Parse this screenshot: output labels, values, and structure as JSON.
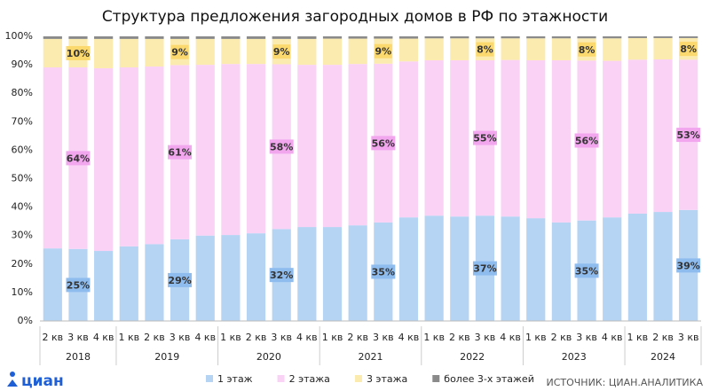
{
  "chart_data": {
    "type": "stacked_bar",
    "title": "Структура предложения загородных домов в РФ по этажности",
    "groups": [
      {
        "label": "2018",
        "categories": [
          "2 кв",
          "3 кв",
          "4 кв"
        ]
      },
      {
        "label": "2019",
        "categories": [
          "1 кв",
          "2 кв",
          "3 кв",
          "4 кв"
        ]
      },
      {
        "label": "2020",
        "categories": [
          "1 кв",
          "2 кв",
          "3 кв",
          "4 кв"
        ]
      },
      {
        "label": "2021",
        "categories": [
          "1 кв",
          "2 кв",
          "3 кв",
          "4 кв"
        ]
      },
      {
        "label": "2022",
        "categories": [
          "1 кв",
          "2 кв",
          "3 кв",
          "4 кв"
        ]
      },
      {
        "label": "2023",
        "categories": [
          "1 кв",
          "2 кв",
          "3 кв",
          "4 кв"
        ]
      },
      {
        "label": "2024",
        "categories": [
          "1 кв",
          "2 кв",
          "3 кв"
        ]
      }
    ],
    "series": [
      {
        "name": "1 этаж",
        "color": "#b5d4f4",
        "label_color": "#8fbcee",
        "values": [
          25.5,
          25.3,
          24.6,
          26.2,
          27.0,
          28.7,
          30.0,
          30.2,
          30.8,
          32.3,
          33.0,
          33.0,
          33.6,
          34.6,
          36.4,
          37.0,
          36.7,
          37.0,
          36.7,
          36.1,
          34.6,
          35.3,
          36.4,
          37.7,
          38.3,
          39.0
        ],
        "value_labels": [
          null,
          "25%",
          null,
          null,
          null,
          "29%",
          null,
          null,
          null,
          "32%",
          null,
          null,
          null,
          "35%",
          null,
          null,
          null,
          "37%",
          null,
          null,
          null,
          "35%",
          null,
          null,
          null,
          "39%"
        ]
      },
      {
        "name": "2 этажа",
        "color": "#f9d2f6",
        "label_color": "#f2a6ee",
        "values": [
          63.6,
          63.8,
          64.2,
          62.9,
          62.4,
          61.2,
          60.0,
          60.1,
          59.5,
          57.9,
          57.0,
          57.0,
          56.7,
          55.8,
          54.8,
          54.6,
          54.9,
          54.6,
          55.0,
          55.5,
          57.0,
          56.2,
          55.0,
          54.1,
          53.6,
          52.8
        ],
        "value_labels": [
          null,
          "64%",
          null,
          null,
          null,
          "61%",
          null,
          null,
          null,
          "58%",
          null,
          null,
          null,
          "56%",
          null,
          null,
          null,
          "55%",
          null,
          null,
          null,
          "56%",
          null,
          null,
          null,
          "53%"
        ]
      },
      {
        "name": "3 этажа",
        "color": "#fcebaf",
        "label_color": "#fbd96e",
        "values": [
          10.0,
          10.0,
          10.3,
          10.0,
          9.7,
          9.2,
          9.1,
          8.8,
          8.8,
          8.9,
          9.1,
          9.2,
          8.9,
          8.8,
          8.0,
          7.7,
          7.7,
          7.7,
          7.6,
          7.7,
          7.7,
          7.8,
          7.9,
          7.6,
          7.5,
          7.6
        ],
        "value_labels": [
          null,
          "10%",
          null,
          null,
          null,
          "9%",
          null,
          null,
          null,
          "9%",
          null,
          null,
          null,
          "9%",
          null,
          null,
          null,
          "8%",
          null,
          null,
          null,
          "8%",
          null,
          null,
          null,
          "8%"
        ]
      },
      {
        "name": "более 3-х этажей",
        "color": "#8a8a8a",
        "values": [
          0.9,
          0.9,
          0.9,
          0.9,
          0.9,
          0.9,
          0.9,
          0.9,
          0.9,
          0.9,
          0.9,
          0.8,
          0.8,
          0.8,
          0.8,
          0.7,
          0.7,
          0.7,
          0.7,
          0.7,
          0.7,
          0.7,
          0.7,
          0.6,
          0.6,
          0.6
        ]
      }
    ],
    "ylim": [
      0,
      100
    ],
    "yticks": [
      {
        "value": 0,
        "label": "0%"
      },
      {
        "value": 10,
        "label": "10%"
      },
      {
        "value": 20,
        "label": "20%"
      },
      {
        "value": 30,
        "label": "30%"
      },
      {
        "value": 40,
        "label": "40%"
      },
      {
        "value": 50,
        "label": "50%"
      },
      {
        "value": 60,
        "label": "60%"
      },
      {
        "value": 70,
        "label": "70%"
      },
      {
        "value": 80,
        "label": "80%"
      },
      {
        "value": 90,
        "label": "90%"
      },
      {
        "value": 100,
        "label": "100%"
      }
    ],
    "grid": false,
    "legend": "bottom",
    "logo": "циан",
    "source": "ИСТОЧНИК: ЦИАН.АНАЛИТИКА"
  }
}
